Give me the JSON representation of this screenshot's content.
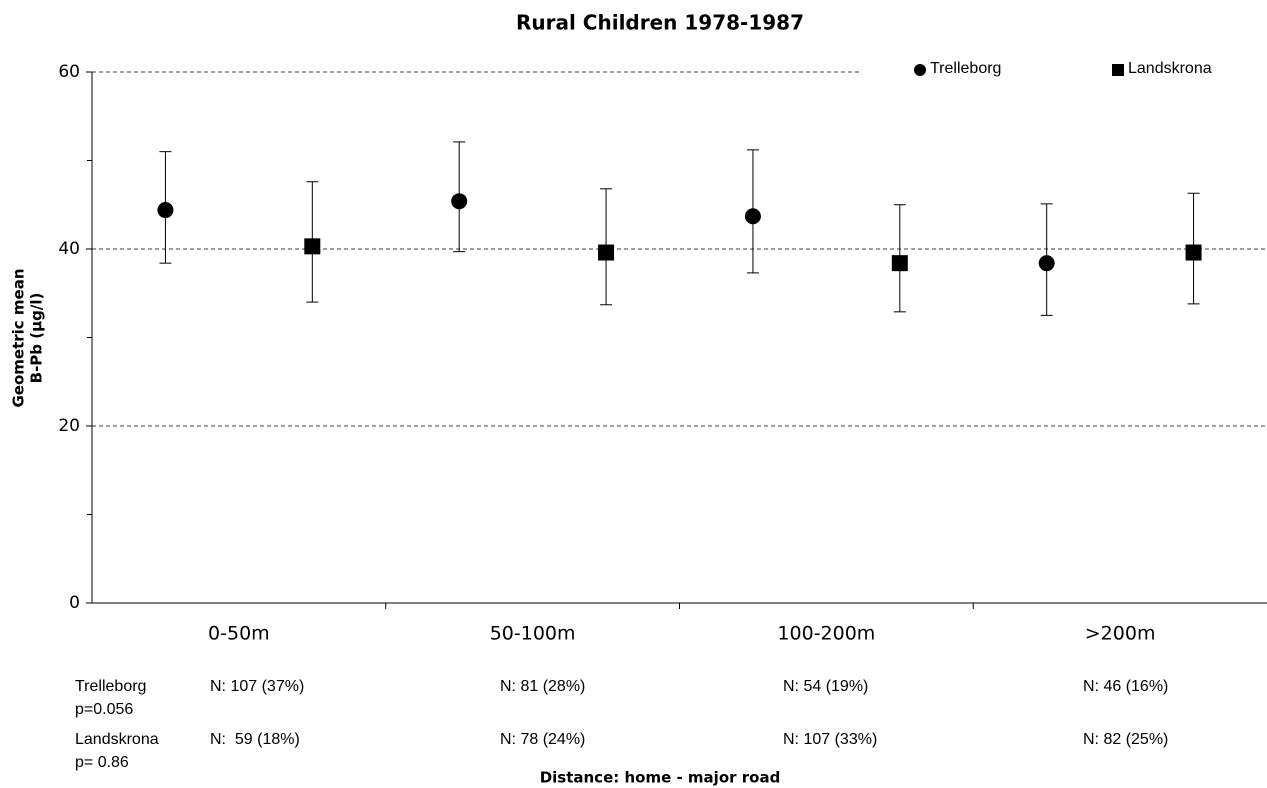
{
  "chart_data": {
    "type": "errorpoint",
    "title": "Rural Children 1978-1987",
    "xlabel": "Distance: home - major road",
    "ylabel": [
      "Geometric mean",
      "B-Pb (µg/l)"
    ],
    "categories": [
      "0-50m",
      "50-100m",
      "100-200m",
      ">200m"
    ],
    "series": [
      {
        "name": "Trelleborg",
        "marker": "circle",
        "color": "#000000",
        "values": [
          44.4,
          45.4,
          43.7,
          38.4
        ],
        "upper": [
          51.0,
          52.1,
          51.2,
          45.1
        ],
        "lower": [
          38.4,
          39.7,
          37.3,
          32.5
        ]
      },
      {
        "name": "Landskrona",
        "marker": "square",
        "color": "#000000",
        "values": [
          40.3,
          39.6,
          38.4,
          39.6
        ],
        "upper": [
          47.6,
          46.8,
          45.0,
          46.3
        ],
        "lower": [
          34.0,
          33.7,
          32.9,
          33.8
        ]
      }
    ],
    "ylim": [
      0,
      60
    ],
    "yticks": [
      0,
      20,
      40,
      60
    ],
    "yminor": [
      10,
      30,
      50
    ],
    "grid": true,
    "sample_table": [
      {
        "label": "Trelleborg",
        "p": "p=0.056",
        "n": [
          "N: 107 (37%)",
          "N: 81 (28%)",
          "N: 54 (19%)",
          "N: 46 (16%)"
        ]
      },
      {
        "label": "Landskrona",
        "p": "p= 0.86",
        "n": [
          "N:  59 (18%)",
          "N: 78 (24%)",
          "N: 107 (33%)",
          "N: 82 (25%)"
        ]
      }
    ]
  }
}
